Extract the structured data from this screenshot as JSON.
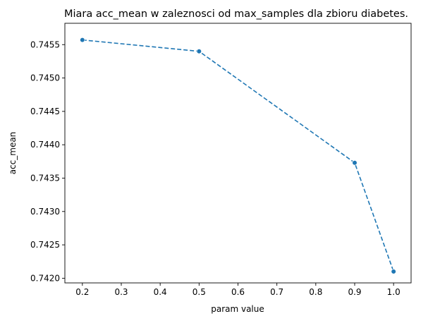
{
  "chart_data": {
    "type": "line",
    "title": "Miara acc_mean w zaleznosci od max_samples dla zbioru diabetes.",
    "xlabel": "param value",
    "ylabel": "acc_mean",
    "xlim": [
      0.155,
      1.045
    ],
    "ylim": [
      0.74193,
      0.74582
    ],
    "xticks": [
      0.2,
      0.3,
      0.4,
      0.5,
      0.6,
      0.7,
      0.8,
      0.9,
      1.0
    ],
    "xtick_labels": [
      "0.2",
      "0.3",
      "0.4",
      "0.5",
      "0.6",
      "0.7",
      "0.8",
      "0.9",
      "1.0"
    ],
    "yticks": [
      0.742,
      0.7425,
      0.743,
      0.7435,
      0.744,
      0.7445,
      0.745,
      0.7455
    ],
    "ytick_labels": [
      "0.7420",
      "0.7425",
      "0.7430",
      "0.7435",
      "0.7440",
      "0.7445",
      "0.7450",
      "0.7455"
    ],
    "grid": false,
    "line_style": "dashed",
    "marker": "circle",
    "color": "#1f77b4",
    "series": [
      {
        "x": [
          0.2,
          0.5,
          0.9,
          1.0
        ],
        "y": [
          0.74557,
          0.7454,
          0.74373,
          0.7421
        ]
      }
    ]
  }
}
